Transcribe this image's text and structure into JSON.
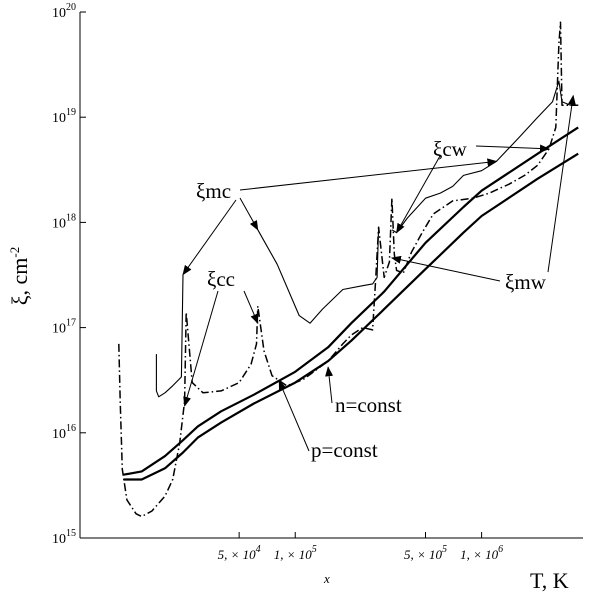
{
  "chart_data": {
    "type": "line",
    "title": "",
    "xlabel": "T, K",
    "xlabel_extra": "x",
    "ylabel": "ξ, cm",
    "ylabel_exponent": "-2",
    "xscale": "log",
    "yscale": "log",
    "xlim": [
      7000,
      3500000
    ],
    "ylim": [
      1000000000000000.0,
      1e+20
    ],
    "grid": false,
    "legend": "none",
    "y_ticks": [
      {
        "mantissa": "10",
        "exponent": "15",
        "value": 1000000000000000.0
      },
      {
        "mantissa": "10",
        "exponent": "16",
        "value": 1e+16
      },
      {
        "mantissa": "10",
        "exponent": "17",
        "value": 1e+17
      },
      {
        "mantissa": "10",
        "exponent": "18",
        "value": 1e+18
      },
      {
        "mantissa": "10",
        "exponent": "19",
        "value": 1e+19
      },
      {
        "mantissa": "10",
        "exponent": "20",
        "value": 1e+20
      }
    ],
    "x_ticks": [
      {
        "prefix": "5, × ",
        "mantissa": "10",
        "exponent": "4",
        "value": 50000
      },
      {
        "prefix": "1, × ",
        "mantissa": "10",
        "exponent": "5",
        "value": 100000
      },
      {
        "prefix": "5, × ",
        "mantissa": "10",
        "exponent": "5",
        "value": 500000
      },
      {
        "prefix": "1, × ",
        "mantissa": "10",
        "exponent": "6",
        "value": 1000000
      }
    ],
    "series": [
      {
        "key": "n_const",
        "style": "solid",
        "x": [
          12000,
          15000,
          20000,
          25000,
          30000,
          40000,
          60000,
          100000,
          150000,
          200000,
          300000,
          500000,
          800000,
          1000000,
          2000000,
          3300000
        ],
        "y": [
          4000000000000000.0,
          4300000000000000.0,
          6000000000000000.0,
          8500000000000000.0,
          1.15e+16,
          1.6e+16,
          2.3e+16,
          3.8e+16,
          6.5e+16,
          1.1e+17,
          2.2e+17,
          6.4e+17,
          1.4e+18,
          2e+18,
          4.5e+18,
          8e+18
        ]
      },
      {
        "key": "p_const",
        "style": "solid",
        "x": [
          12000,
          15000,
          20000,
          25000,
          30000,
          40000,
          60000,
          100000,
          150000,
          200000,
          300000,
          500000,
          800000,
          1000000,
          2000000,
          3300000
        ],
        "y": [
          3600000000000000.0,
          3600000000000000.0,
          4600000000000000.0,
          6500000000000000.0,
          9000000000000000.0,
          1.25e+16,
          1.9e+16,
          3e+16,
          4.8e+16,
          7.5e+16,
          1.5e+17,
          3.6e+17,
          8e+17,
          1.15e+18,
          2.6e+18,
          4.5e+18
        ]
      },
      {
        "key": "xi_mc",
        "style": "solid-thin",
        "segments": [
          {
            "x": [
              18000,
              18000,
              18500,
              20000,
              22000,
              24500,
              25000
            ],
            "y": [
              5.6e+16,
              2.5e+16,
              2.2e+16,
              2.4e+16,
              2.8e+16,
              3.4e+16,
              3.2e+17
            ]
          },
          {
            "x": [
              63000,
              80000,
              105000,
              120000,
              140000,
              180000,
              230000,
              260000,
              275000,
              280000
            ],
            "y": [
              8.5e+17,
              4e+17,
              1.3e+17,
              1.1e+17,
              1.5e+17,
              2.3e+17,
              2.5e+17,
              2.6e+17,
              3e+17,
              9e+17
            ]
          },
          {
            "x": [
              330000,
              350000,
              400000,
              500000,
              600000,
              700000,
              800000,
              1000000,
              1200000,
              1600000,
              2000000,
              2400000,
              2600000,
              2700000,
              3000000,
              3300000
            ],
            "y": [
              8.5e+17,
              8e+17,
              1.1e+18,
              1.7e+18,
              1.9e+18,
              2.2e+18,
              2.8e+18,
              3.1e+18,
              3.8e+18,
              6.5e+18,
              1e+19,
              1.4e+19,
              2.2e+19,
              1.4e+19,
              1.3e+19,
              1.3e+19
            ]
          }
        ]
      },
      {
        "key": "xi_cc",
        "style": "dash-dot",
        "x": [
          11300,
          11500,
          11800,
          12500,
          14000,
          15000,
          17000,
          20000,
          22000,
          24000,
          25500,
          26000,
          28000,
          32000,
          40000,
          50000,
          58000,
          62000,
          63000,
          68000,
          75000,
          90000,
          110000,
          150000,
          180000,
          200000,
          230000,
          260000,
          270000,
          280000,
          300000,
          320000,
          330000,
          340000,
          350000,
          380000,
          420000,
          480000,
          550000,
          700000,
          900000,
          1100000,
          1400000,
          1700000,
          2000000,
          2300000,
          2500000,
          2600000,
          2650000,
          2700000,
          3000000,
          3300000
        ],
        "y": [
          7e+16,
          2e+16,
          4500000000000000.0,
          2300000000000000.0,
          1700000000000000.0,
          1600000000000000.0,
          1800000000000000.0,
          2500000000000000.0,
          3600000000000000.0,
          8000000000000000.0,
          2e+16,
          1.4e+17,
          3e+16,
          2.4e+16,
          2.5e+16,
          3e+16,
          4.5e+16,
          7e+16,
          1.6e+17,
          6e+16,
          3.5e+16,
          2.8e+16,
          3.2e+16,
          4.8e+16,
          7e+16,
          8.5e+16,
          1e+17,
          9.5e+16,
          2.8e+17,
          9e+17,
          3e+17,
          4.2e+17,
          1.7e+18,
          5e+17,
          3.5e+17,
          3.3e+17,
          5.2e+17,
          8e+17,
          1.2e+18,
          1.6e+18,
          1.7e+18,
          1.9e+18,
          2.3e+18,
          2.8e+18,
          3.5e+18,
          5e+18,
          8e+18,
          5e+19,
          8e+19,
          1.3e+19,
          1.3e+19,
          1.3e+19
        ]
      }
    ],
    "annotations": [
      {
        "text": "ξmc",
        "target": "xi_mc"
      },
      {
        "text": "ξcc",
        "target": "xi_cc"
      },
      {
        "text": "ξcw",
        "target": "xi_mc"
      },
      {
        "text": "ξmw",
        "target": "xi_cc"
      },
      {
        "text": "n=const",
        "target": "n_const"
      },
      {
        "text": "p=const",
        "target": "p_const"
      }
    ]
  }
}
